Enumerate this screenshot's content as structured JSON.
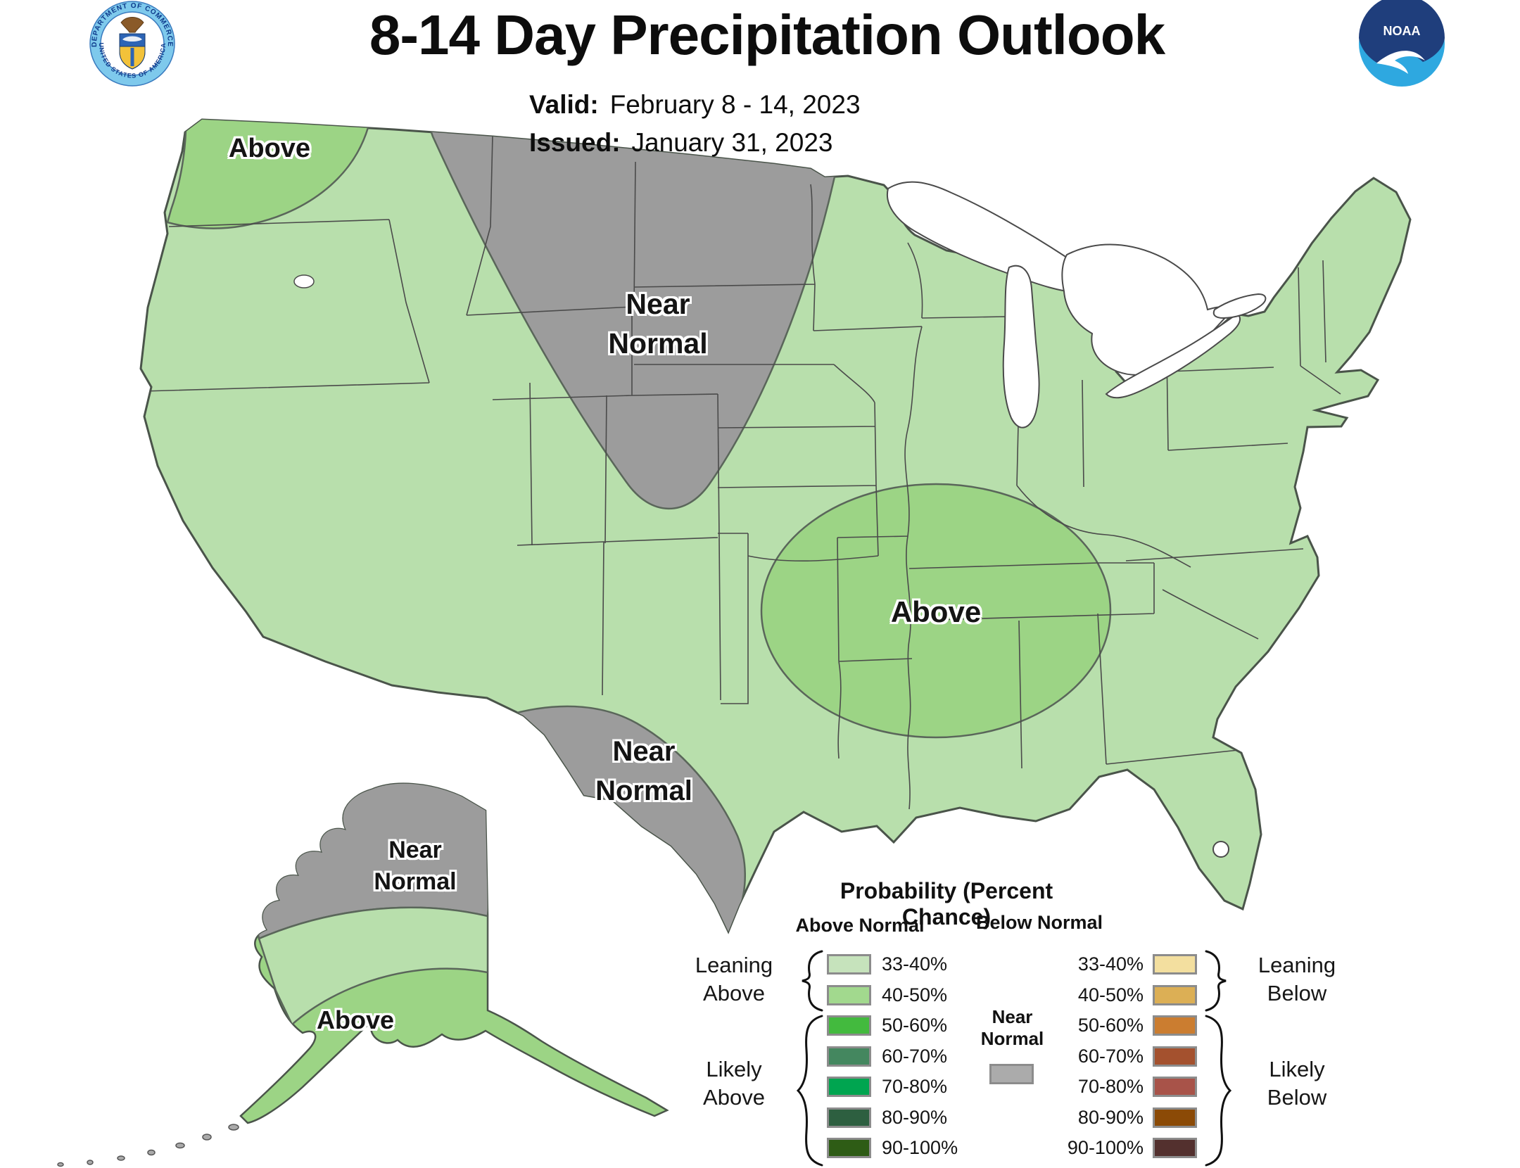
{
  "header": {
    "title": "8-14 Day Precipitation Outlook",
    "valid_label": "Valid:",
    "valid_value": "February 8 - 14, 2023",
    "issued_label": "Issued:",
    "issued_value": "January 31, 2023"
  },
  "logos": {
    "noaa_text": "NOAA",
    "commerce_top": "DEPARTMENT OF COMMERCE",
    "commerce_bottom": "UNITED STATES OF AMERICA"
  },
  "map": {
    "labels": {
      "nw_above": "Above",
      "north_line1": "Near",
      "north_line2": "Normal",
      "midsouth_above": "Above",
      "south_line1": "Near",
      "south_line2": "Normal",
      "alaska_line1": "Near",
      "alaska_line2": "Normal",
      "alaska_above": "Above"
    },
    "colors": {
      "leaning_above_33_40": "#B8DFAC",
      "above_40_50": "#9CD485",
      "near_normal": "#9C9C9C"
    }
  },
  "legend": {
    "title": "Probability (Percent Chance)",
    "above_header": "Above Normal",
    "below_header": "Below Normal",
    "near_normal": {
      "line1": "Near",
      "line2": "Normal",
      "color": "#ABABAB"
    },
    "left_groups": {
      "leaning_line1": "Leaning",
      "leaning_line2": "Above",
      "likely_line1": "Likely",
      "likely_line2": "Above"
    },
    "right_groups": {
      "leaning_line1": "Leaning",
      "leaning_line2": "Below",
      "likely_line1": "Likely",
      "likely_line2": "Below"
    },
    "rows": [
      {
        "range": "33-40%",
        "above_color": "#C6E3BC",
        "below_color": "#F3DF9F"
      },
      {
        "range": "40-50%",
        "above_color": "#A2D98E",
        "below_color": "#DCAF55"
      },
      {
        "range": "50-60%",
        "above_color": "#43BA3E",
        "below_color": "#CB7D30"
      },
      {
        "range": "60-70%",
        "above_color": "#44875F",
        "below_color": "#A4512E"
      },
      {
        "range": "70-80%",
        "above_color": "#00A550",
        "below_color": "#A85349"
      },
      {
        "range": "80-90%",
        "above_color": "#2D5F40",
        "below_color": "#8B4A06"
      },
      {
        "range": "90-100%",
        "above_color": "#2E5C15",
        "below_color": "#53302E"
      }
    ]
  }
}
